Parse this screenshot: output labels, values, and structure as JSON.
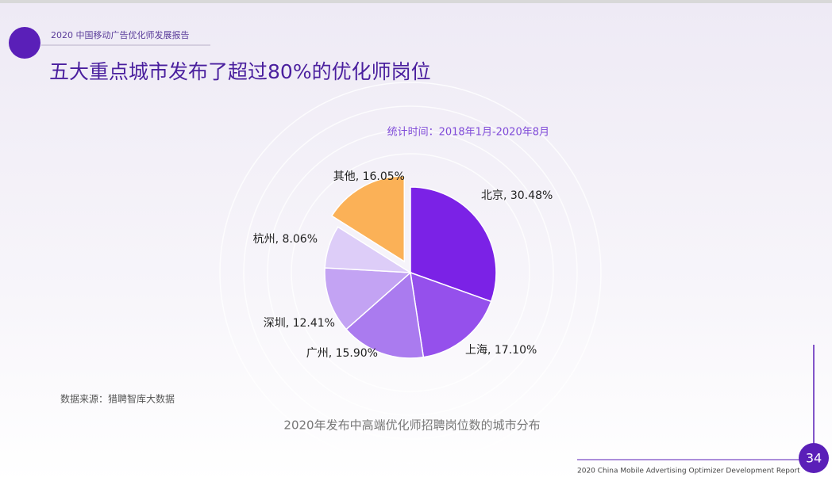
{
  "slide": {
    "tag": "2020 中国移动广告优化师发展报告",
    "title": "五大重点城市发布了超过80%的优化师岗位",
    "footer": "2020 China Mobile Advertising Optimizer Development Report",
    "page_number": "34"
  },
  "chart_data": {
    "type": "pie",
    "title": "2020年发布中高端优化师招聘岗位数的城市分布",
    "subtitle": "统计时间：2018年1月-2020年8月",
    "source": "数据来源：猎聘智库大数据",
    "categories": [
      "北京",
      "上海",
      "广州",
      "深圳",
      "杭州",
      "其他"
    ],
    "values": [
      30.48,
      17.1,
      15.9,
      12.41,
      8.06,
      16.05
    ],
    "value_labels": [
      "北京, 30.48%",
      "上海, 17.10%",
      "广州, 15.90%",
      "深圳, 12.41%",
      "杭州, 8.06%",
      "其他, 16.05%"
    ],
    "colors": [
      "#7b22e6",
      "#9550ec",
      "#aa7bef",
      "#c3a3f3",
      "#ddcdf8",
      "#fbb157"
    ],
    "exploded": [
      5
    ]
  }
}
